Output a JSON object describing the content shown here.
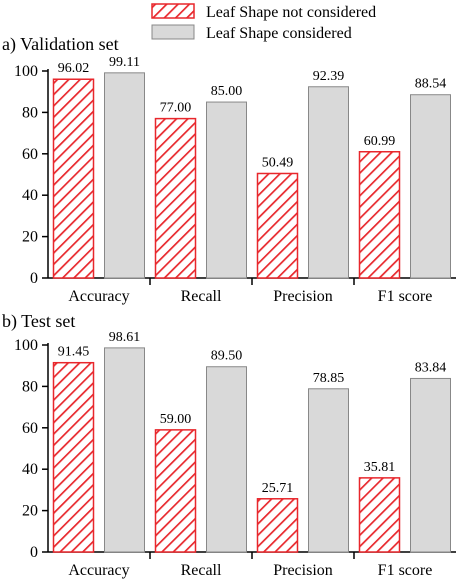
{
  "legend": {
    "placement": "top-center",
    "entries": [
      {
        "label": "Leaf Shape not considered",
        "color": "#e8272c",
        "pattern": "diagonal-hatch"
      },
      {
        "label": "Leaf Shape considered",
        "color": "#d9d9d9",
        "pattern": "solid"
      }
    ]
  },
  "chart_data": [
    {
      "type": "bar",
      "title": "a) Validation set",
      "categories": [
        "Accuracy",
        "Recall",
        "Precision",
        "F1 score"
      ],
      "series": [
        {
          "name": "Leaf Shape not considered",
          "values": [
            96.02,
            77.0,
            50.49,
            60.99
          ],
          "labels": [
            "96.02",
            "77.00",
            "50.49",
            "60.99"
          ]
        },
        {
          "name": "Leaf Shape considered",
          "values": [
            99.11,
            85.0,
            92.39,
            88.54
          ],
          "labels": [
            "99.11",
            "85.00",
            "92.39",
            "88.54"
          ]
        }
      ],
      "ylim": [
        0,
        100
      ],
      "yticks": [
        0,
        20,
        40,
        60,
        80,
        100
      ],
      "xlabel": "",
      "ylabel": "",
      "grid": false
    },
    {
      "type": "bar",
      "title": "b) Test set",
      "categories": [
        "Accuracy",
        "Recall",
        "Precision",
        "F1 score"
      ],
      "series": [
        {
          "name": "Leaf Shape not considered",
          "values": [
            91.45,
            59.0,
            25.71,
            35.81
          ],
          "labels": [
            "91.45",
            "59.00",
            "25.71",
            "35.81"
          ]
        },
        {
          "name": "Leaf Shape considered",
          "values": [
            98.61,
            89.5,
            78.85,
            83.84
          ],
          "labels": [
            "98.61",
            "89.50",
            "78.85",
            "83.84"
          ]
        }
      ],
      "ylim": [
        0,
        100
      ],
      "yticks": [
        0,
        20,
        40,
        60,
        80,
        100
      ],
      "xlabel": "",
      "ylabel": "",
      "grid": false
    }
  ]
}
